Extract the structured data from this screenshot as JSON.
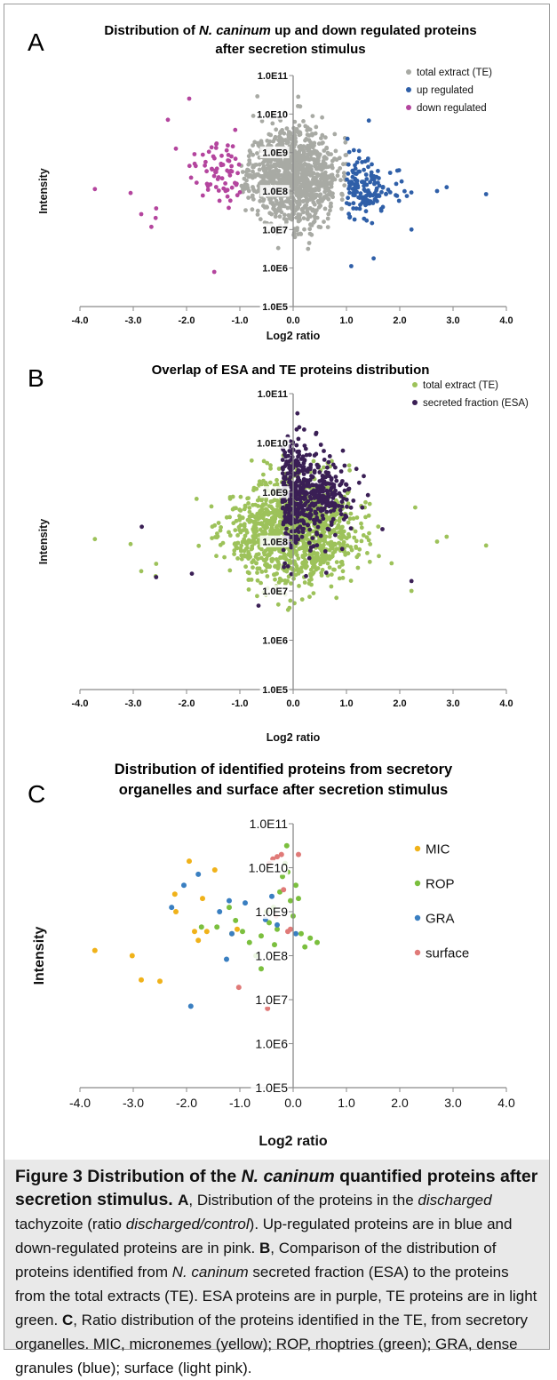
{
  "chart_data": [
    {
      "type": "scatter",
      "panel_letter": "A",
      "title_prefix": "Distribution of ",
      "title_italic": "N. caninum",
      "title_suffix": " up and down regulated proteins",
      "title_line2": "after secretion stimulus",
      "xlabel": "Log2 ratio",
      "ylabel": "Intensity",
      "xlim": [
        -4,
        4
      ],
      "ylim_log10": [
        5,
        11
      ],
      "x_ticks": [
        "-4.0",
        "-3.0",
        "-2.0",
        "-1.0",
        "0.0",
        "1.0",
        "2.0",
        "3.0",
        "4.0"
      ],
      "y_ticks": [
        "1.0E5",
        "1.0E6",
        "1.0E7",
        "1.0E8",
        "1.0E9",
        "1.0E10",
        "1.0E11"
      ],
      "legend_position": "top-right",
      "grid": false,
      "series": [
        {
          "name": "total extract (TE)",
          "color": "#a8aaa4",
          "cloud": {
            "n": 1100,
            "xmin": -1.0,
            "xmax": 1.0,
            "xsd": 0.42,
            "ymean": 8.4,
            "ysd": 0.68,
            "ymin": 5.25,
            "ymax": 10.75,
            "seed": 11
          }
        },
        {
          "name": "up regulated",
          "color": "#2f5fa8",
          "cloud": {
            "n": 150,
            "xmin": 1.0,
            "xmax": 2.6,
            "xsd": 0.45,
            "xmean": 1.0,
            "ymean": 8.05,
            "ysd": 0.6,
            "ymin": 6.1,
            "ymax": 9.9,
            "seed": 23
          },
          "points": [
            [
              3.62,
              7.92
            ],
            [
              2.7,
              8.0
            ],
            [
              1.42,
              9.83
            ],
            [
              2.22,
              7.0
            ],
            [
              2.88,
              8.1
            ],
            [
              1.51,
              6.25
            ],
            [
              1.09,
              6.05
            ]
          ]
        },
        {
          "name": "down regulated",
          "color": "#b4459e",
          "cloud": {
            "n": 70,
            "xmin": -2.3,
            "xmax": -1.0,
            "xsd": 0.4,
            "xmean": -1.0,
            "ymean": 8.5,
            "ysd": 0.65,
            "ymin": 6.8,
            "ymax": 10.4,
            "seed": 37
          },
          "points": [
            [
              -3.72,
              8.05
            ],
            [
              -3.05,
              7.95
            ],
            [
              -2.85,
              7.4
            ],
            [
              -2.58,
              7.3
            ],
            [
              -2.57,
              7.55
            ],
            [
              -2.66,
              7.07
            ],
            [
              -1.95,
              10.4
            ],
            [
              -1.48,
              5.9
            ],
            [
              -2.2,
              9.1
            ],
            [
              -2.35,
              9.85
            ]
          ]
        }
      ]
    },
    {
      "type": "scatter",
      "panel_letter": "B",
      "title": "Overlap of ESA and TE proteins distribution",
      "xlabel": "Log2 ratio",
      "ylabel": "Intensity",
      "xlim": [
        -4,
        4
      ],
      "ylim_log10": [
        5,
        11
      ],
      "x_ticks": [
        "-4.0",
        "-3.0",
        "-2.0",
        "-1.0",
        "0.0",
        "1.0",
        "2.0",
        "3.0",
        "4.0"
      ],
      "y_ticks": [
        "1.0E5",
        "1.0E6",
        "1.0E7",
        "1.0E8",
        "1.0E9",
        "1.0E10",
        "1.0E11"
      ],
      "legend_position": "top-right",
      "grid": false,
      "series": [
        {
          "name": "total extract (TE)",
          "color": "#9dc25a",
          "cloud": {
            "n": 1200,
            "xmin": -2.2,
            "xmax": 2.3,
            "xsd": 0.6,
            "ymean": 8.2,
            "ysd": 0.62,
            "ymin": 5.25,
            "ymax": 10.4,
            "seed": 51
          },
          "points": [
            [
              -3.72,
              8.05
            ],
            [
              -3.05,
              7.95
            ],
            [
              -2.85,
              7.4
            ],
            [
              -2.58,
              7.3
            ],
            [
              -2.57,
              7.55
            ],
            [
              3.62,
              7.92
            ],
            [
              2.7,
              8.0
            ],
            [
              2.88,
              8.1
            ],
            [
              2.22,
              7.0
            ]
          ]
        },
        {
          "name": "secreted fraction (ESA)",
          "color": "#3a1f55",
          "cloud": {
            "n": 520,
            "xmin": -2.2,
            "xmax": 1.7,
            "xsd": 0.55,
            "xmean": -0.2,
            "ymean": 8.9,
            "ysd": 0.55,
            "ymin": 7.0,
            "ymax": 10.5,
            "seed": 67
          },
          "points": [
            [
              -2.84,
              8.3
            ],
            [
              -2.57,
              7.28
            ],
            [
              -1.9,
              7.35
            ],
            [
              2.22,
              7.2
            ],
            [
              0.08,
              10.6
            ],
            [
              -0.65,
              6.7
            ]
          ]
        }
      ]
    },
    {
      "type": "scatter",
      "panel_letter": "C",
      "title_line1": "Distribution of identified proteins from secretory",
      "title_line2": "organelles and surface after secretion stimulus",
      "xlabel": "Log2 ratio",
      "ylabel": "Intensity",
      "xlim": [
        -4,
        4
      ],
      "ylim_log10": [
        5,
        11
      ],
      "x_ticks": [
        "-4.0",
        "-3.0",
        "-2.0",
        "-1.0",
        "0.0",
        "1.0",
        "2.0",
        "3.0",
        "4.0"
      ],
      "y_ticks": [
        "1.0E5",
        "1.0E6",
        "1.0E7",
        "1.0E8",
        "1.0E9",
        "1.0E10",
        "1.0E11"
      ],
      "legend_position": "right",
      "grid": false,
      "series": [
        {
          "name": "MIC",
          "color": "#f0b21a",
          "points": [
            [
              -3.72,
              8.12
            ],
            [
              -3.02,
              8.0
            ],
            [
              -2.85,
              7.45
            ],
            [
              -2.5,
              7.42
            ],
            [
              -1.95,
              10.15
            ],
            [
              -2.22,
              9.4
            ],
            [
              -2.2,
              9.0
            ],
            [
              -1.7,
              9.3
            ],
            [
              -1.47,
              9.95
            ],
            [
              -1.85,
              8.55
            ],
            [
              -1.78,
              8.35
            ],
            [
              -1.62,
              8.55
            ],
            [
              -1.15,
              8.5
            ],
            [
              -1.05,
              8.6
            ]
          ]
        },
        {
          "name": "ROP",
          "color": "#7bbf3e",
          "points": [
            [
              -1.72,
              8.65
            ],
            [
              -1.43,
              8.65
            ],
            [
              -1.2,
              9.1
            ],
            [
              -1.08,
              8.8
            ],
            [
              -0.95,
              8.55
            ],
            [
              -0.82,
              8.3
            ],
            [
              -0.7,
              8.0
            ],
            [
              -0.6,
              8.45
            ],
            [
              -0.5,
              9.0
            ],
            [
              -0.45,
              8.75
            ],
            [
              -0.37,
              9.1
            ],
            [
              -0.3,
              8.6
            ],
            [
              -0.25,
              9.45
            ],
            [
              -0.2,
              9.8
            ],
            [
              -0.15,
              10.1
            ],
            [
              -0.12,
              10.5
            ],
            [
              -0.05,
              9.25
            ],
            [
              0.05,
              9.6
            ],
            [
              0.1,
              9.3
            ],
            [
              0.15,
              8.5
            ],
            [
              0.22,
              8.2
            ],
            [
              0.32,
              8.4
            ],
            [
              0.45,
              8.3
            ],
            [
              -0.6,
              7.7
            ],
            [
              -0.35,
              8.25
            ],
            [
              -0.1,
              9.9
            ],
            [
              0.0,
              8.9
            ]
          ]
        },
        {
          "name": "GRA",
          "color": "#3a7fc1",
          "points": [
            [
              -1.78,
              9.85
            ],
            [
              -2.28,
              9.1
            ],
            [
              -2.05,
              9.6
            ],
            [
              -1.38,
              9.0
            ],
            [
              -1.15,
              8.5
            ],
            [
              -1.25,
              7.92
            ],
            [
              -1.92,
              6.85
            ],
            [
              -1.2,
              9.25
            ],
            [
              -0.9,
              9.2
            ],
            [
              -0.52,
              8.82
            ],
            [
              -0.4,
              9.35
            ],
            [
              -0.3,
              8.7
            ],
            [
              0.05,
              8.5
            ]
          ]
        },
        {
          "name": "surface",
          "color": "#e07a78",
          "points": [
            [
              -0.45,
              10.1
            ],
            [
              -0.38,
              10.2
            ],
            [
              -0.3,
              10.25
            ],
            [
              -0.22,
              10.3
            ],
            [
              -0.18,
              9.5
            ],
            [
              -0.1,
              8.55
            ],
            [
              0.1,
              10.3
            ],
            [
              -0.32,
              8.9
            ],
            [
              -0.05,
              8.6
            ],
            [
              -1.02,
              7.28
            ],
            [
              -0.48,
              6.8
            ]
          ]
        }
      ]
    }
  ],
  "caption": {
    "figure_label": "Figure 3",
    "title_a": "Distribution of the ",
    "title_italic": "N. caninum",
    "title_b": " quantified proteins after secretion stimulus.",
    "letter_a": "A",
    "text_a1": ", Distribution of the proteins in the ",
    "italic_a1": "discharged",
    "text_a2": " tachyzoite (ratio ",
    "italic_a2": "discharged/control",
    "text_a3": "). Up-regulated proteins are in blue and down-regulated proteins are in pink. ",
    "letter_b": "B",
    "text_b1": ", Comparison of the distribution of proteins identified from ",
    "italic_b1": "N. caninum",
    "text_b2": " secreted fraction (ESA) to the proteins from the total extracts (TE). ESA proteins are in purple, TE proteins are in light green. ",
    "letter_c": "C",
    "text_c1": ", Ratio distribution of the proteins identified in the TE, from secretory organelles. MIC, micronemes (yellow); ROP, rhoptries (green); GRA, dense granules (blue); surface (light pink)."
  }
}
